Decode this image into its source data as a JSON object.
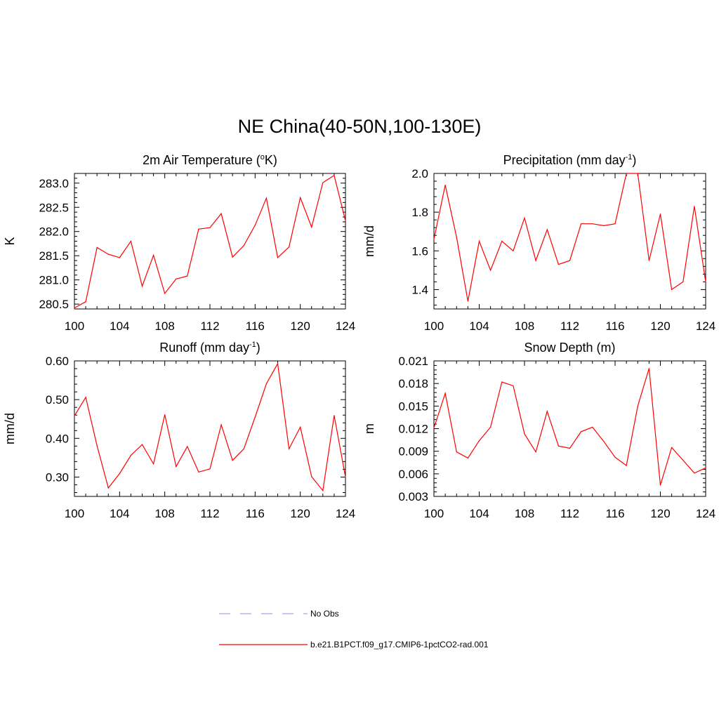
{
  "figure": {
    "title": "NE China(40-50N,100-130E)"
  },
  "chart_data": [
    {
      "type": "line",
      "title": "2m Air Temperature (",
      "title_sup": "o",
      "title_suffix": "K)",
      "ylabel": "K",
      "xlim": [
        100,
        124
      ],
      "ylim": [
        280.4,
        283.2
      ],
      "xticks": [
        "100",
        "104",
        "108",
        "112",
        "116",
        "120",
        "124"
      ],
      "yticks": [
        "280.5",
        "281.0",
        "281.5",
        "282.0",
        "282.5",
        "283.0"
      ],
      "series": [
        {
          "name": "b.e21.B1PCT.f09_g17.CMIP6-1pctCO2-rad.001",
          "color": "#ff0000",
          "x": [
            100,
            101,
            102,
            103,
            104,
            105,
            106,
            107,
            108,
            109,
            110,
            111,
            112,
            113,
            114,
            115,
            116,
            117,
            118,
            119,
            120,
            121,
            122,
            123,
            124
          ],
          "values": [
            280.42,
            280.55,
            281.67,
            281.53,
            281.46,
            281.8,
            280.87,
            281.51,
            280.72,
            281.02,
            281.08,
            282.05,
            282.08,
            282.37,
            281.47,
            281.71,
            282.13,
            282.69,
            281.46,
            281.68,
            282.7,
            282.09,
            283.01,
            283.16,
            282.22
          ]
        }
      ]
    },
    {
      "type": "line",
      "title": "Precipitation (mm day",
      "title_sup": "-1",
      "title_suffix": ")",
      "ylabel": "mm/d",
      "xlim": [
        100,
        124
      ],
      "ylim": [
        1.3,
        2.0
      ],
      "xticks": [
        "100",
        "104",
        "108",
        "112",
        "116",
        "120",
        "124"
      ],
      "yticks": [
        "1.4",
        "1.6",
        "1.8",
        "2.0"
      ],
      "series": [
        {
          "name": "b.e21.B1PCT.f09_g17.CMIP6-1pctCO2-rad.001",
          "color": "#ff0000",
          "x": [
            100,
            101,
            102,
            103,
            104,
            105,
            106,
            107,
            108,
            109,
            110,
            111,
            112,
            113,
            114,
            115,
            116,
            117,
            118,
            119,
            120,
            121,
            122,
            123,
            124
          ],
          "values": [
            1.66,
            1.94,
            1.67,
            1.34,
            1.65,
            1.5,
            1.65,
            1.6,
            1.77,
            1.55,
            1.71,
            1.53,
            1.55,
            1.74,
            1.74,
            1.73,
            1.74,
            2.0,
            2.0,
            1.55,
            1.79,
            1.4,
            1.44,
            1.83,
            1.44
          ]
        }
      ]
    },
    {
      "type": "line",
      "title": "Runoff (mm day",
      "title_sup": "-1",
      "title_suffix": ")",
      "ylabel": "mm/d",
      "xlim": [
        100,
        124
      ],
      "ylim": [
        0.25,
        0.6
      ],
      "xticks": [
        "100",
        "104",
        "108",
        "112",
        "116",
        "120",
        "124"
      ],
      "yticks": [
        "0.30",
        "0.40",
        "0.50",
        "0.60"
      ],
      "series": [
        {
          "name": "b.e21.B1PCT.f09_g17.CMIP6-1pctCO2-rad.001",
          "color": "#ff0000",
          "x": [
            100,
            101,
            102,
            103,
            104,
            105,
            106,
            107,
            108,
            109,
            110,
            111,
            112,
            113,
            114,
            115,
            116,
            117,
            118,
            119,
            120,
            121,
            122,
            123,
            124
          ],
          "values": [
            0.458,
            0.506,
            0.381,
            0.272,
            0.309,
            0.356,
            0.384,
            0.334,
            0.461,
            0.327,
            0.379,
            0.313,
            0.321,
            0.435,
            0.343,
            0.373,
            0.455,
            0.541,
            0.593,
            0.373,
            0.429,
            0.301,
            0.265,
            0.459,
            0.3
          ]
        }
      ]
    },
    {
      "type": "line",
      "title": "Snow Depth (m)",
      "title_sup": "",
      "title_suffix": "",
      "ylabel": "m",
      "xlim": [
        100,
        124
      ],
      "ylim": [
        0.003,
        0.021
      ],
      "xticks": [
        "100",
        "104",
        "108",
        "112",
        "116",
        "120",
        "124"
      ],
      "yticks": [
        "0.003",
        "0.006",
        "0.009",
        "0.012",
        "0.015",
        "0.018",
        "0.021"
      ],
      "series": [
        {
          "name": "b.e21.B1PCT.f09_g17.CMIP6-1pctCO2-rad.001",
          "color": "#ff0000",
          "x": [
            100,
            101,
            102,
            103,
            104,
            105,
            106,
            107,
            108,
            109,
            110,
            111,
            112,
            113,
            114,
            115,
            116,
            117,
            118,
            119,
            120,
            121,
            122,
            123,
            124
          ],
          "values": [
            0.0121,
            0.0167,
            0.0089,
            0.0081,
            0.0104,
            0.0122,
            0.0182,
            0.0177,
            0.0113,
            0.0089,
            0.0143,
            0.0097,
            0.0094,
            0.0116,
            0.0122,
            0.0103,
            0.0082,
            0.0071,
            0.015,
            0.02,
            0.0045,
            0.0095,
            0.0078,
            0.0061,
            0.0068
          ]
        }
      ]
    }
  ],
  "legend": {
    "items": [
      {
        "label": "No Obs",
        "color": "#a8a8f0",
        "style": "dashed"
      },
      {
        "label": "b.e21.B1PCT.f09_g17.CMIP6-1pctCO2-rad.001",
        "color": "#ff0000",
        "style": "solid"
      }
    ]
  }
}
